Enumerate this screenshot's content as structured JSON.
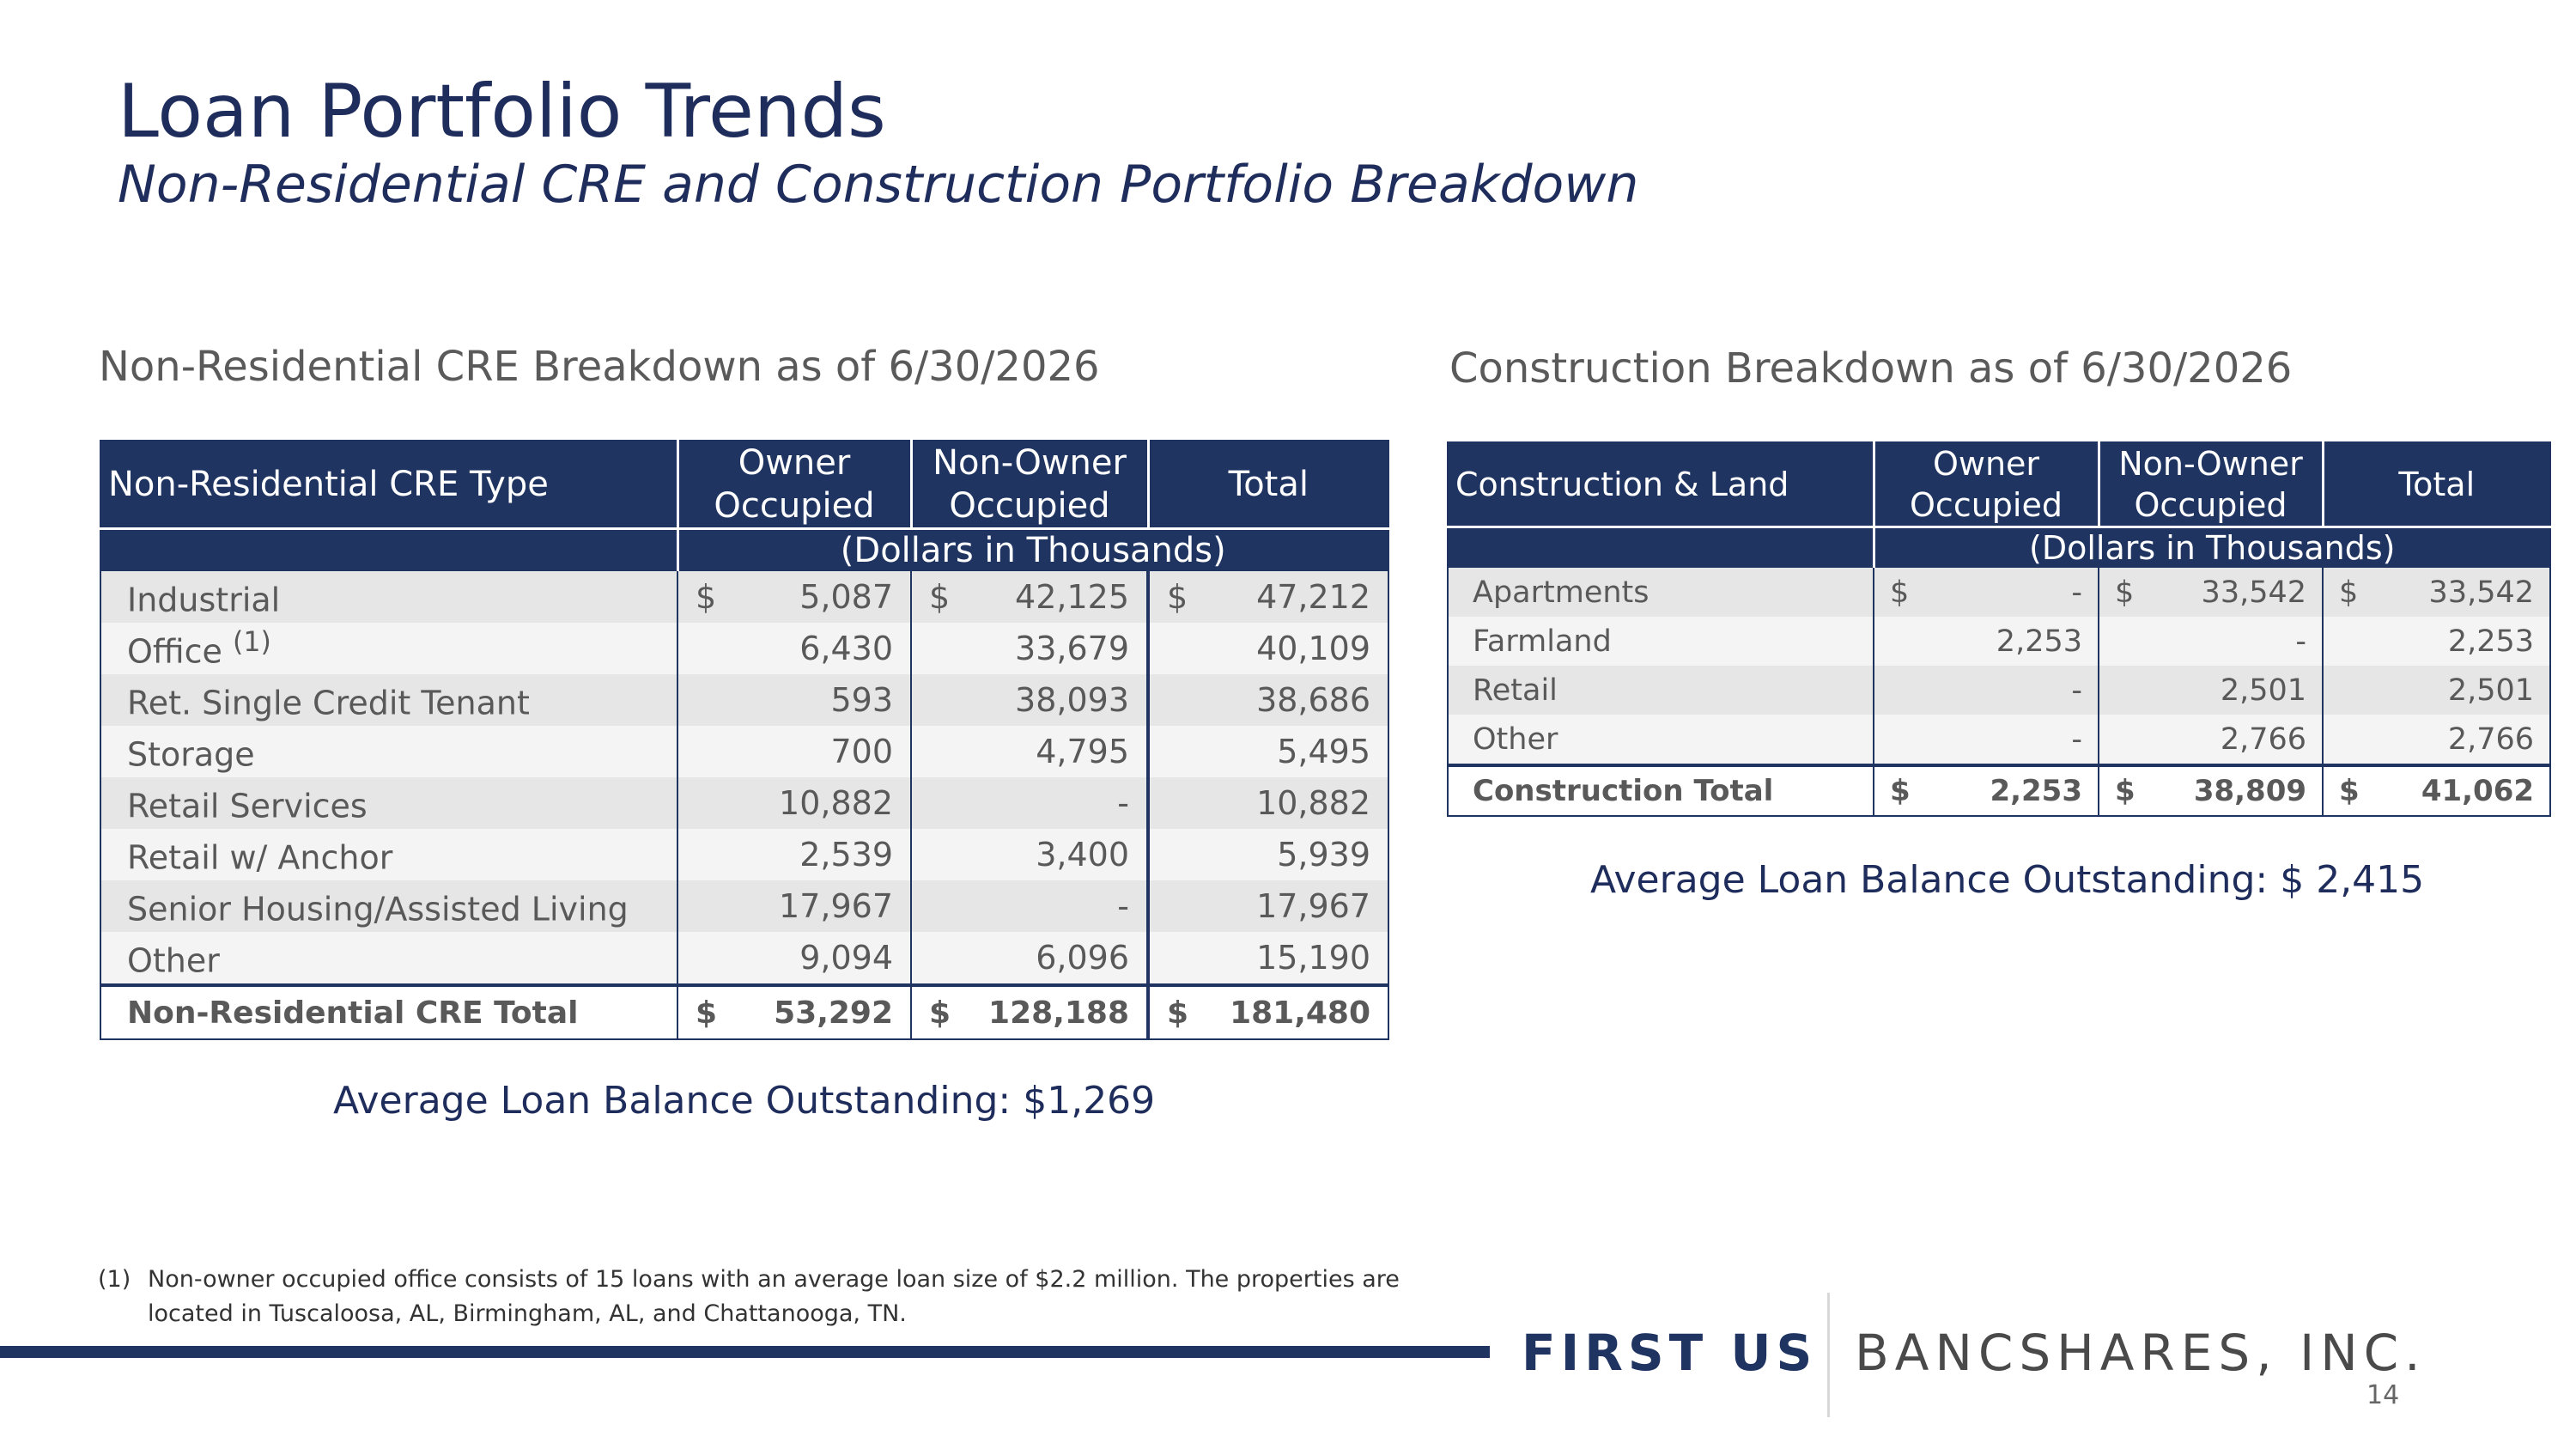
{
  "header": {
    "title": "Loan Portfolio Trends",
    "subtitle": "Non-Residential CRE and Construction Portfolio Breakdown"
  },
  "cre": {
    "section_title": "Non-Residential CRE Breakdown as of 6/30/2026",
    "columns": {
      "type": "Non-Residential CRE Type",
      "owner_line1": "Owner",
      "owner_line2": "Occupied",
      "nonowner_line1": "Non-Owner",
      "nonowner_line2": "Occupied",
      "total": "Total"
    },
    "units": "(Dollars in Thousands)",
    "rows": [
      {
        "label": "Industrial",
        "sup": "",
        "owner_cur": "$",
        "owner": "5,087",
        "nonowner_cur": "$",
        "nonowner": "42,125",
        "total_cur": "$",
        "total": "47,212"
      },
      {
        "label": "Office",
        "sup": "(1)",
        "owner_cur": "",
        "owner": "6,430",
        "nonowner_cur": "",
        "nonowner": "33,679",
        "total_cur": "",
        "total": "40,109"
      },
      {
        "label": "Ret. Single Credit Tenant",
        "sup": "",
        "owner_cur": "",
        "owner": "593",
        "nonowner_cur": "",
        "nonowner": "38,093",
        "total_cur": "",
        "total": "38,686"
      },
      {
        "label": "Storage",
        "sup": "",
        "owner_cur": "",
        "owner": "700",
        "nonowner_cur": "",
        "nonowner": "4,795",
        "total_cur": "",
        "total": "5,495"
      },
      {
        "label": "Retail Services",
        "sup": "",
        "owner_cur": "",
        "owner": "10,882",
        "nonowner_cur": "",
        "nonowner": "-",
        "total_cur": "",
        "total": "10,882"
      },
      {
        "label": "Retail w/ Anchor",
        "sup": "",
        "owner_cur": "",
        "owner": "2,539",
        "nonowner_cur": "",
        "nonowner": "3,400",
        "total_cur": "",
        "total": "5,939"
      },
      {
        "label": "Senior Housing/Assisted Living",
        "sup": "",
        "owner_cur": "",
        "owner": "17,967",
        "nonowner_cur": "",
        "nonowner": "-",
        "total_cur": "",
        "total": "17,967"
      },
      {
        "label": "Other",
        "sup": "",
        "owner_cur": "",
        "owner": "9,094",
        "nonowner_cur": "",
        "nonowner": "6,096",
        "total_cur": "",
        "total": "15,190"
      }
    ],
    "total_row": {
      "label": "Non-Residential CRE Total",
      "owner_cur": "$",
      "owner": "53,292",
      "nonowner_cur": "$",
      "nonowner": "128,188",
      "total_cur": "$",
      "total": "181,480"
    },
    "avg_balance": "Average Loan Balance Outstanding:   $1,269"
  },
  "construction": {
    "section_title": "Construction Breakdown as of 6/30/2026",
    "columns": {
      "type": "Construction & Land",
      "owner_line1": "Owner",
      "owner_line2": "Occupied",
      "nonowner_line1": "Non-Owner",
      "nonowner_line2": "Occupied",
      "total": "Total"
    },
    "units": "(Dollars in Thousands)",
    "rows": [
      {
        "label": "Apartments",
        "owner_cur": "$",
        "owner": "-",
        "nonowner_cur": "$",
        "nonowner": "33,542",
        "total_cur": "$",
        "total": "33,542"
      },
      {
        "label": "Farmland",
        "owner_cur": "",
        "owner": "2,253",
        "nonowner_cur": "",
        "nonowner": "-",
        "total_cur": "",
        "total": "2,253"
      },
      {
        "label": "Retail",
        "owner_cur": "",
        "owner": "-",
        "nonowner_cur": "",
        "nonowner": "2,501",
        "total_cur": "",
        "total": "2,501"
      },
      {
        "label": "Other",
        "owner_cur": "",
        "owner": "-",
        "nonowner_cur": "",
        "nonowner": "2,766",
        "total_cur": "",
        "total": "2,766"
      }
    ],
    "total_row": {
      "label": "Construction Total",
      "owner_cur": "$",
      "owner": "2,253",
      "nonowner_cur": "$",
      "nonowner": "38,809",
      "total_cur": "$",
      "total": "41,062"
    },
    "avg_balance": "Average Loan Balance Outstanding:   $ 2,415"
  },
  "footnote": {
    "marker": "(1)",
    "text": "Non-owner occupied office consists of 15 loans with an average loan size of $2.2 million. The properties are located in Tuscaloosa, AL, Birmingham, AL, and Chattanooga, TN."
  },
  "footer": {
    "brand_bold": "FIRST US",
    "brand_rest": "BANCSHARES, INC.",
    "page_number": "14"
  }
}
